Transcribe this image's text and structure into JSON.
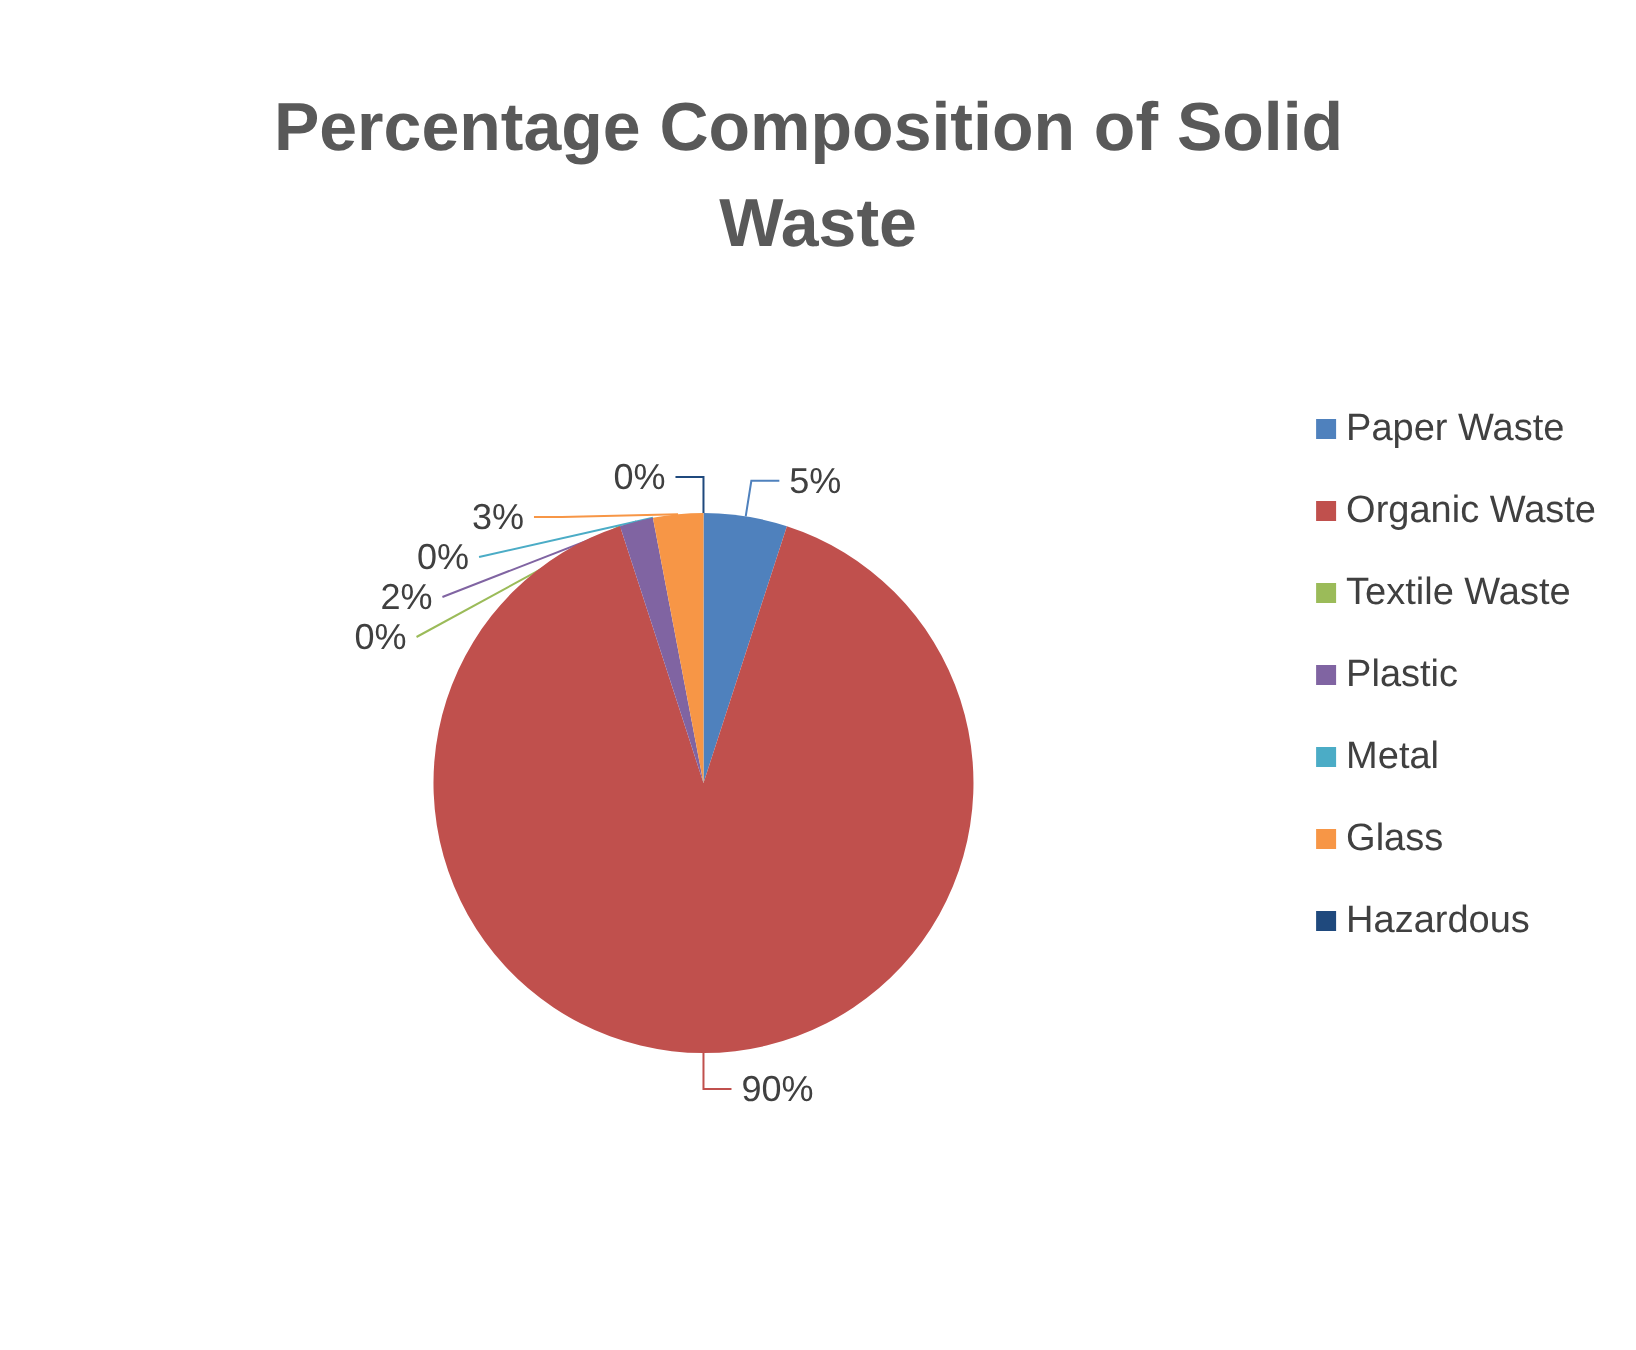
{
  "chart_data": {
    "type": "pie",
    "title": "Percentage Composition of Solid Waste",
    "categories": [
      "Paper Waste",
      "Organic Waste",
      "Textile Waste",
      "Plastic",
      "Metal",
      "Glass",
      "Hazardous"
    ],
    "values": [
      5,
      90,
      0,
      2,
      0,
      3,
      0
    ],
    "colors": [
      "#4f81bd",
      "#c0504d",
      "#9bbb59",
      "#8064a2",
      "#4bacc6",
      "#f79646",
      "#1f497d"
    ],
    "value_labels": [
      "5%",
      "90%",
      "0%",
      "2%",
      "0%",
      "3%",
      "0%"
    ],
    "legend": "right"
  }
}
